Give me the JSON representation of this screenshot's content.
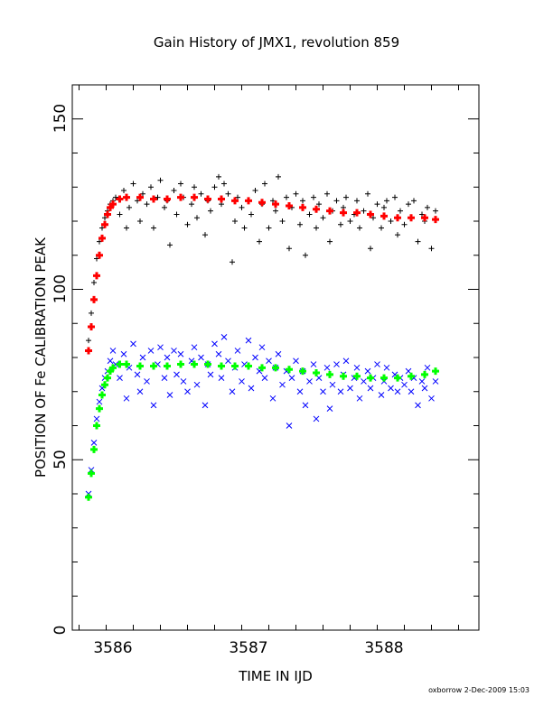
{
  "chart_data": {
    "type": "scatter",
    "title": "Gain History of JMX1, revolution 859",
    "xlabel": "TIME IN IJD",
    "ylabel": "POSITION OF Fe CALIBRATION PEAK",
    "xlim": [
      3585.7,
      3588.7
    ],
    "ylim": [
      0,
      160
    ],
    "xticks": [
      "3586",
      "3587",
      "3588"
    ],
    "yticks": [
      "0",
      "50",
      "100",
      "150"
    ],
    "grid": false,
    "footer": "oxborrow  2-Dec-2009 15:03",
    "colors": {
      "black_points": "#000000",
      "red_fit": "#ff0000",
      "blue_points": "#0000ff",
      "green_fit": "#00ff00"
    },
    "series": [
      {
        "marker": "plus",
        "color": "#000000",
        "x": [
          3585.82,
          3585.84,
          3585.86,
          3585.88,
          3585.9,
          3585.92,
          3585.94,
          3585.96,
          3585.98,
          3586.0,
          3586.02,
          3586.05,
          3586.08,
          3586.1,
          3586.12,
          3586.15,
          3586.18,
          3586.2,
          3586.22,
          3586.25,
          3586.28,
          3586.3,
          3586.33,
          3586.35,
          3586.38,
          3586.4,
          3586.42,
          3586.45,
          3586.47,
          3586.5,
          3586.52,
          3586.55,
          3586.58,
          3586.6,
          3586.62,
          3586.65,
          3586.68,
          3586.7,
          3586.72,
          3586.75,
          3586.78,
          3586.8,
          3586.82,
          3586.85,
          3586.88,
          3586.9,
          3586.92,
          3586.95,
          3586.97,
          3587.0,
          3587.02,
          3587.05,
          3587.08,
          3587.1,
          3587.12,
          3587.15,
          3587.18,
          3587.2,
          3587.22,
          3587.25,
          3587.28,
          3587.3,
          3587.32,
          3587.35,
          3587.38,
          3587.4,
          3587.42,
          3587.45,
          3587.48,
          3587.5,
          3587.52,
          3587.55,
          3587.58,
          3587.6,
          3587.62,
          3587.65,
          3587.68,
          3587.7,
          3587.72,
          3587.75,
          3587.78,
          3587.8,
          3587.82,
          3587.85,
          3587.88,
          3587.9,
          3587.92,
          3587.95,
          3587.98,
          3588.0,
          3588.02,
          3588.05,
          3588.08,
          3588.1,
          3588.12,
          3588.15,
          3588.18,
          3588.2,
          3588.22,
          3588.25,
          3588.28,
          3588.3,
          3588.32,
          3588.35,
          3588.38
        ],
        "y": [
          85,
          93,
          102,
          109,
          114,
          118,
          121,
          123,
          125,
          126,
          127,
          122,
          129,
          118,
          124,
          131,
          126,
          120,
          128,
          125,
          130,
          118,
          127,
          132,
          124,
          126,
          113,
          129,
          122,
          131,
          127,
          119,
          125,
          130,
          121,
          128,
          116,
          126,
          123,
          130,
          133,
          125,
          131,
          128,
          108,
          120,
          127,
          124,
          118,
          126,
          122,
          129,
          114,
          125,
          131,
          118,
          126,
          123,
          133,
          120,
          127,
          112,
          124,
          128,
          119,
          126,
          110,
          122,
          127,
          118,
          125,
          121,
          128,
          114,
          123,
          126,
          119,
          124,
          127,
          120,
          122,
          126,
          118,
          123,
          128,
          112,
          121,
          125,
          118,
          124,
          126,
          120,
          127,
          116,
          123,
          119,
          125,
          121,
          126,
          114,
          122,
          120,
          124,
          112,
          123
        ]
      },
      {
        "marker": "plus",
        "color": "#ff0000",
        "x": [
          3585.82,
          3585.84,
          3585.86,
          3585.88,
          3585.9,
          3585.92,
          3585.94,
          3585.96,
          3585.98,
          3586.0,
          3586.05,
          3586.1,
          3586.2,
          3586.3,
          3586.4,
          3586.5,
          3586.6,
          3586.7,
          3586.8,
          3586.9,
          3587.0,
          3587.1,
          3587.2,
          3587.3,
          3587.4,
          3587.5,
          3587.6,
          3587.7,
          3587.8,
          3587.9,
          3588.0,
          3588.1,
          3588.2,
          3588.3,
          3588.38
        ],
        "y": [
          82,
          89,
          97,
          104,
          110,
          115,
          119,
          122,
          124,
          125,
          126.5,
          127,
          127,
          126.5,
          126.5,
          127,
          127,
          126.5,
          126.5,
          126,
          126,
          125.5,
          125,
          124.5,
          124,
          123.5,
          123,
          122.5,
          122.5,
          122,
          121.5,
          121,
          121,
          121,
          120.5
        ]
      },
      {
        "marker": "cross",
        "color": "#0000ff",
        "x": [
          3585.82,
          3585.84,
          3585.86,
          3585.88,
          3585.9,
          3585.92,
          3585.94,
          3585.96,
          3585.98,
          3586.0,
          3586.02,
          3586.05,
          3586.08,
          3586.1,
          3586.12,
          3586.15,
          3586.18,
          3586.2,
          3586.22,
          3586.25,
          3586.28,
          3586.3,
          3586.33,
          3586.35,
          3586.38,
          3586.4,
          3586.42,
          3586.45,
          3586.47,
          3586.5,
          3586.52,
          3586.55,
          3586.58,
          3586.6,
          3586.62,
          3586.65,
          3586.68,
          3586.7,
          3586.72,
          3586.75,
          3586.78,
          3586.8,
          3586.82,
          3586.85,
          3586.88,
          3586.9,
          3586.92,
          3586.95,
          3586.97,
          3587.0,
          3587.02,
          3587.05,
          3587.08,
          3587.1,
          3587.12,
          3587.15,
          3587.18,
          3587.2,
          3587.22,
          3587.25,
          3587.28,
          3587.3,
          3587.32,
          3587.35,
          3587.38,
          3587.4,
          3587.42,
          3587.45,
          3587.48,
          3587.5,
          3587.52,
          3587.55,
          3587.58,
          3587.6,
          3587.62,
          3587.65,
          3587.68,
          3587.7,
          3587.72,
          3587.75,
          3587.78,
          3587.8,
          3587.82,
          3587.85,
          3587.88,
          3587.9,
          3587.92,
          3587.95,
          3587.98,
          3588.0,
          3588.02,
          3588.05,
          3588.08,
          3588.1,
          3588.12,
          3588.15,
          3588.18,
          3588.2,
          3588.22,
          3588.25,
          3588.28,
          3588.3,
          3588.32,
          3588.35,
          3588.38
        ],
        "y": [
          40,
          47,
          55,
          62,
          67,
          71,
          74,
          76,
          79,
          82,
          78,
          74,
          81,
          68,
          77,
          84,
          75,
          70,
          80,
          73,
          82,
          66,
          78,
          83,
          74,
          80,
          69,
          82,
          75,
          81,
          73,
          70,
          79,
          83,
          72,
          80,
          66,
          78,
          75,
          84,
          81,
          74,
          86,
          79,
          70,
          77,
          82,
          73,
          78,
          85,
          71,
          80,
          76,
          83,
          74,
          79,
          68,
          77,
          81,
          72,
          76,
          60,
          74,
          79,
          70,
          76,
          66,
          73,
          78,
          62,
          74,
          70,
          77,
          65,
          72,
          78,
          70,
          75,
          79,
          71,
          74,
          77,
          68,
          73,
          76,
          71,
          74,
          78,
          69,
          73,
          77,
          71,
          75,
          70,
          74,
          72,
          76,
          70,
          74,
          66,
          73,
          71,
          77,
          68,
          73
        ]
      },
      {
        "marker": "plus",
        "color": "#00ff00",
        "x": [
          3585.82,
          3585.84,
          3585.86,
          3585.88,
          3585.9,
          3585.92,
          3585.94,
          3585.96,
          3585.98,
          3586.0,
          3586.05,
          3586.1,
          3586.2,
          3586.3,
          3586.4,
          3586.5,
          3586.6,
          3586.7,
          3586.8,
          3586.9,
          3587.0,
          3587.1,
          3587.2,
          3587.3,
          3587.4,
          3587.5,
          3587.6,
          3587.7,
          3587.8,
          3587.9,
          3588.0,
          3588.1,
          3588.2,
          3588.3,
          3588.38
        ],
        "y": [
          39,
          46,
          53,
          60,
          65,
          69,
          72,
          74,
          76,
          77,
          78,
          78,
          77.5,
          77.5,
          77.5,
          78,
          78,
          78,
          77.5,
          77.5,
          77.5,
          77,
          77,
          76.5,
          76,
          75.5,
          75,
          74.5,
          74.5,
          74,
          74,
          74,
          74.5,
          75,
          76
        ]
      }
    ]
  }
}
